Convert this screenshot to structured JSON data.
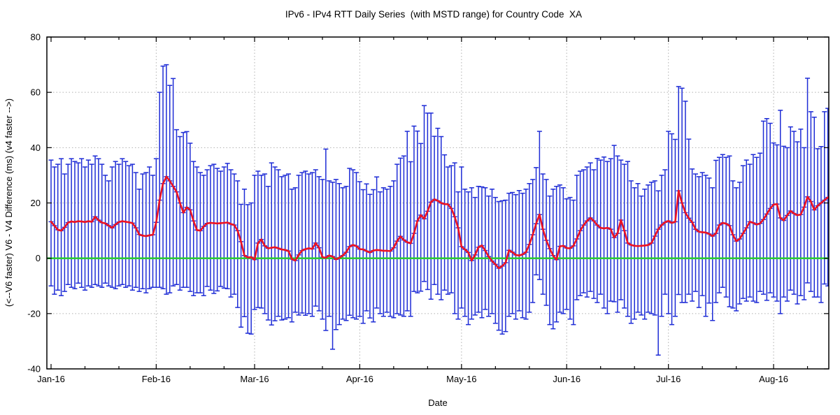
{
  "page": {
    "background": "#ffffff"
  },
  "chart_data": {
    "type": "line+errorbar",
    "title": "IPv6 - IPv4 RTT Daily Series  (with MSTD range) for Country Code  XA",
    "xlabel": "Date",
    "ylabel": "(<--V6 faster) V6 - V4 Difference (ms) (v4 faster -->)",
    "ylim": [
      -40,
      80
    ],
    "y_ticks": [
      80,
      60,
      40,
      20,
      0,
      -20,
      -40
    ],
    "y_grid_values": [
      60,
      40,
      20,
      -20
    ],
    "x_ticks": [
      {
        "label": "Jan-16",
        "day": 0
      },
      {
        "label": "Feb-16",
        "day": 31
      },
      {
        "label": "Mar-16",
        "day": 60
      },
      {
        "label": "Apr-16",
        "day": 91
      },
      {
        "label": "May-16",
        "day": 121
      },
      {
        "label": "Jun-16",
        "day": 152
      },
      {
        "label": "Jul-16",
        "day": 182
      },
      {
        "label": "Aug-16",
        "day": 213
      }
    ],
    "x_minor_tick_days": [
      10,
      20,
      41,
      51,
      70,
      80,
      101,
      111,
      131,
      141,
      162,
      172,
      192,
      202,
      223
    ],
    "x_unit": "day index from Jan-16 (daily points, Jan 1 - Aug 17 2016)",
    "grid": true,
    "legend": "none",
    "colors": {
      "error_bars": "#1e2cd6",
      "mean_line": "#ec1323",
      "zero_line": "#2cc937",
      "grid": "#b0b0b0",
      "border": "#000000",
      "background": "#ffffff"
    },
    "series": [
      {
        "name": "daily MSTD range",
        "role": "errorbars",
        "color": "#1e2cd6"
      },
      {
        "name": "daily mean V6-V4 difference",
        "role": "line",
        "color": "#ec1323"
      },
      {
        "name": "zero reference",
        "role": "baseline",
        "color": "#2cc937"
      }
    ],
    "mean": [
      13.2,
      11.8,
      10.3,
      10,
      11.2,
      12.9,
      13.3,
      13.1,
      13.4,
      13.3,
      13.1,
      13.4,
      13.2,
      15,
      13.8,
      12.9,
      12.6,
      11.8,
      11,
      12.2,
      13.1,
      13.4,
      13.2,
      13,
      12.7,
      11,
      8.6,
      8.2,
      8,
      8.3,
      8.5,
      13,
      21,
      27,
      29.5,
      28,
      26,
      24,
      20,
      16.5,
      18.4,
      17.5,
      13.5,
      10.2,
      10,
      11.5,
      12.6,
      12.8,
      12.7,
      12.6,
      12.7,
      12.8,
      12.9,
      12.4,
      12,
      10,
      6,
      1,
      0.3,
      0.4,
      -0.5,
      5.5,
      6.8,
      4.5,
      3.6,
      3.8,
      4,
      3.6,
      3.2,
      3,
      2.6,
      -0.3,
      -0.8,
      1.2,
      2.8,
      3.3,
      3.6,
      3.4,
      5.5,
      3.8,
      0.4,
      0.2,
      1,
      0.6,
      -0.4,
      0.2,
      1,
      2.2,
      4.2,
      4.8,
      4.4,
      3.3,
      3.2,
      2.6,
      2.1,
      2.8,
      3,
      2.9,
      2.7,
      2.7,
      2.6,
      3.8,
      6.2,
      7.9,
      6.6,
      5.8,
      5.4,
      9,
      13.5,
      15.6,
      14.3,
      17,
      20.3,
      21.3,
      20.8,
      20,
      19.6,
      19.5,
      18,
      15,
      11,
      4.2,
      3.2,
      2.1,
      -0.8,
      1.2,
      4,
      4.6,
      2.8,
      0.6,
      -1,
      -2.2,
      -3.6,
      -2.8,
      -1.6,
      2.9,
      2.2,
      1.2,
      1,
      1.4,
      2.2,
      5,
      8.5,
      12.5,
      15.8,
      10.5,
      6.5,
      3.5,
      1,
      -0.5,
      4.3,
      4.5,
      3.7,
      3.6,
      4.5,
      7,
      10,
      12,
      13.5,
      14.6,
      13.5,
      12,
      11,
      10.8,
      11,
      10.5,
      7.5,
      9,
      13.8,
      10,
      5.5,
      4.8,
      4.5,
      4.4,
      4.5,
      4.6,
      4.8,
      5.5,
      8,
      10.5,
      12,
      13,
      13.5,
      12.8,
      13.2,
      24.4,
      20,
      16.5,
      14.5,
      13,
      10.5,
      9.6,
      9.4,
      9.3,
      8.8,
      8,
      9,
      12,
      12.8,
      12.5,
      11.8,
      8.5,
      6.2,
      7,
      9,
      11,
      13.2,
      12.8,
      12.2,
      12.6,
      14,
      16,
      18,
      19.4,
      19.6,
      14.6,
      13.7,
      15.5,
      17.1,
      16.2,
      15.6,
      15.8,
      18.5,
      22.2,
      20.5,
      17.5,
      19,
      20,
      21,
      22
    ],
    "upper": [
      35.5,
      33,
      34,
      36,
      30.5,
      34,
      36,
      35,
      34.5,
      36,
      33,
      35.5,
      34,
      37,
      36,
      34,
      30,
      28,
      33,
      35,
      34,
      36,
      35,
      33.5,
      34,
      31,
      25,
      30.5,
      31,
      33,
      30,
      36,
      60,
      69.5,
      70,
      62.5,
      65,
      46.5,
      44,
      45.5,
      45.8,
      41.6,
      35,
      33,
      31,
      30,
      32,
      33.5,
      34,
      32.5,
      31.5,
      33,
      34.3,
      32,
      30.5,
      28,
      19.5,
      25,
      19.4,
      20,
      30,
      31.5,
      30,
      30.5,
      26,
      34.5,
      33,
      32,
      29.5,
      30,
      30.5,
      25,
      25.5,
      30,
      31,
      31.5,
      30.5,
      31,
      32,
      29.5,
      28.5,
      39.5,
      28,
      27.5,
      28.5,
      27,
      25.5,
      26,
      32.5,
      32,
      31,
      27.7,
      24.8,
      26.9,
      23.1,
      24.8,
      29.4,
      24,
      25.5,
      25,
      26,
      28,
      34,
      36.2,
      37,
      45.9,
      34.9,
      47.8,
      46,
      41.5,
      55.2,
      52.5,
      52.5,
      44.1,
      47,
      44,
      37.4,
      33,
      33.5,
      34.5,
      24,
      33,
      25,
      24,
      25.5,
      22,
      26,
      25.8,
      25.5,
      22.5,
      25,
      22,
      20.5,
      20.8,
      21,
      23.5,
      23.8,
      23,
      24.5,
      23.5,
      25,
      27,
      28.5,
      32.8,
      45.9,
      30.5,
      28.5,
      22.5,
      25,
      26,
      26.5,
      25.5,
      21.5,
      22,
      21,
      30,
      31.5,
      32,
      33,
      34.5,
      32,
      36.1,
      35.5,
      36.6,
      35,
      36,
      40.8,
      37,
      35.5,
      34,
      35,
      28,
      25.5,
      27,
      22.5,
      25,
      26.5,
      27.5,
      28,
      24.4,
      30,
      32,
      45.9,
      45,
      43,
      62.1,
      61.5,
      56.8,
      43.1,
      32.3,
      30.5,
      29.5,
      31,
      30,
      29,
      25.5,
      35.4,
      36.5,
      37.5,
      36.5,
      37,
      28,
      25.5,
      27.5,
      33.5,
      35.5,
      34,
      37.5,
      36.5,
      38,
      49.6,
      50.5,
      48.8,
      41.7,
      41,
      53.5,
      40.5,
      40,
      47.5,
      45.9,
      42.1,
      46.7,
      40,
      65.1,
      53,
      51,
      39.6,
      40.4,
      53,
      54.2
    ],
    "lower": [
      -10,
      -13,
      -11.5,
      -13.5,
      -12,
      -9.5,
      -10.5,
      -11,
      -9,
      -10.5,
      -11.5,
      -10,
      -10.5,
      -9.5,
      -10,
      -10.5,
      -9,
      -10,
      -10.5,
      -11,
      -10,
      -9.5,
      -10.5,
      -10,
      -11.5,
      -10.5,
      -12,
      -11,
      -12.5,
      -11,
      -10.5,
      -10.5,
      -10.5,
      -11,
      -13,
      -12.5,
      -10,
      -9.5,
      -11.5,
      -10.5,
      -10.5,
      -12,
      -13.5,
      -12.5,
      -12.5,
      -13.5,
      -10.2,
      -11.5,
      -12.7,
      -11.8,
      -10.2,
      -10.8,
      -11,
      -14,
      -13,
      -17.8,
      -24.9,
      -21.1,
      -27.1,
      -27.4,
      -18.5,
      -17.8,
      -18,
      -20,
      -22.3,
      -24.1,
      -22.6,
      -21,
      -22.3,
      -22,
      -21.5,
      -23,
      -19.5,
      -20.5,
      -19.8,
      -20.6,
      -20,
      -21,
      -17.3,
      -19,
      -22,
      -26.1,
      -21,
      -32.9,
      -25.8,
      -24,
      -22,
      -22.5,
      -20.6,
      -21.5,
      -22,
      -21,
      -23.5,
      -19,
      -21.6,
      -23,
      -18,
      -20,
      -21,
      -19.5,
      -21,
      -21.5,
      -20,
      -20.5,
      -21,
      -19,
      -21,
      -12,
      -12.5,
      -11.9,
      -8.4,
      -11.3,
      -14.8,
      -9.5,
      -13,
      -15,
      -11.5,
      -13,
      -12.5,
      -20,
      -22,
      -18,
      -21,
      -24,
      -22,
      -20.5,
      -19.5,
      -21.5,
      -18.5,
      -21,
      -20,
      -23.5,
      -26,
      -27.4,
      -26.5,
      -21,
      -20,
      -22,
      -19,
      -21.5,
      -22,
      -19.5,
      -16,
      -6,
      -7.7,
      -13,
      -17,
      -24,
      -25.5,
      -23,
      -19.5,
      -20,
      -18.5,
      -22,
      -24,
      -15,
      -13.5,
      -12.5,
      -14,
      -12,
      -14.5,
      -16,
      -13,
      -18,
      -20,
      -15.5,
      -15.7,
      -19.5,
      -15,
      -18,
      -21,
      -23.5,
      -22,
      -19.5,
      -20.5,
      -22,
      -19.5,
      -20,
      -20.5,
      -35,
      -21,
      -13,
      -20,
      -24,
      -21,
      -13.1,
      -16,
      -16,
      -13,
      -15.5,
      -12,
      -17.8,
      -13.5,
      -21,
      -16.2,
      -22.5,
      -16,
      -12.5,
      -10.5,
      -14,
      -17.5,
      -18,
      -19,
      -16.5,
      -14.5,
      -15.5,
      -14,
      -15.5,
      -16,
      -12,
      -13,
      -15.2,
      -12.5,
      -14,
      -15.5,
      -20,
      -14,
      -15.5,
      -11.5,
      -13,
      -16.5,
      -13.5,
      -15,
      -8.9,
      -12,
      -14,
      -14,
      -16,
      -9.3,
      -10
    ]
  }
}
